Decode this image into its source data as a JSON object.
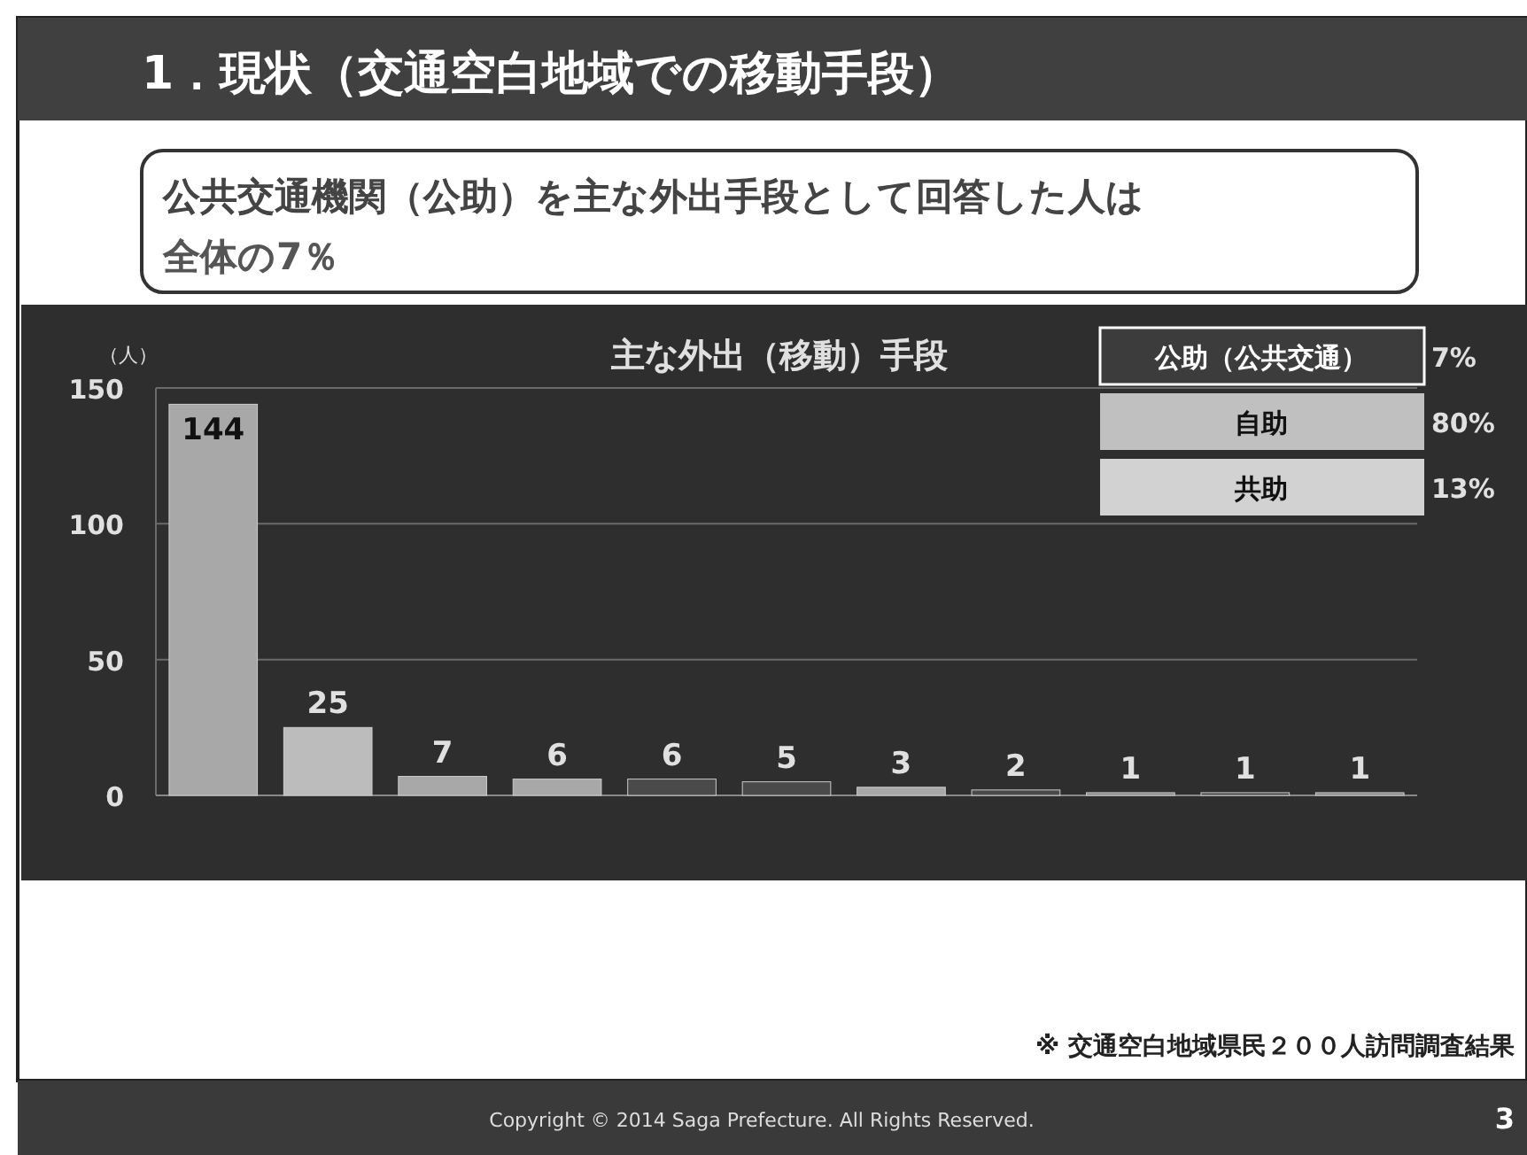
{
  "chart_data": {
    "type": "bar",
    "title": "主な外出（移動）手段",
    "ylabel": "（人）",
    "categories": [
      null,
      null,
      null,
      null,
      null,
      null,
      null,
      null,
      null,
      null,
      null
    ],
    "values": [
      144,
      25,
      7,
      6,
      6,
      5,
      3,
      2,
      1,
      1,
      1
    ],
    "colors": [
      "#a8a8a8",
      "#bcbcbc",
      "#a8a8a8",
      "#a8a8a8",
      "#4a4a4a",
      "#4a4a4a",
      "#a8a8a8",
      "#4a4a4a",
      "#8a8a8a",
      "#4a4a4a",
      "#8a8a8a"
    ],
    "data_labels": true,
    "ylim": [
      0,
      150
    ],
    "yticks": [
      0,
      50,
      100,
      150
    ],
    "grid": "y",
    "annotations": [
      "1．現状（交通空白地域での移動手段）",
      "公共交通機関（公助）を主な外出手段として回答した人は",
      "全体の7％",
      "公助（公共交通）",
      "7%",
      "自助",
      "80%",
      "共助",
      "13%",
      "※ 交通空白地域県民２００人訪問調査結果",
      "Copyright © 2014 Saga Prefecture. All Rights Reserved.",
      "3"
    ]
  }
}
